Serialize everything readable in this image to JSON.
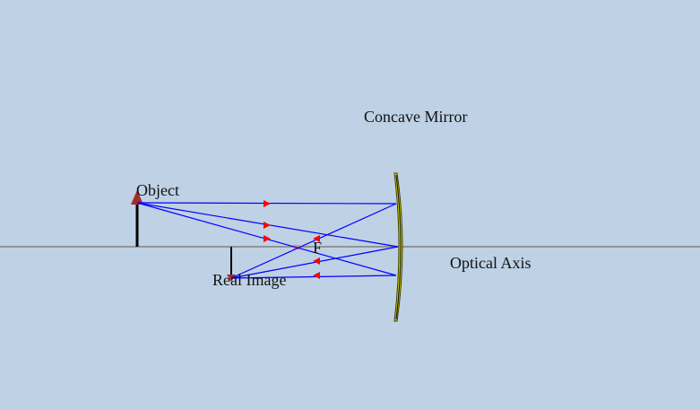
{
  "labels": {
    "mirror": "Concave Mirror",
    "object": "Object",
    "image": "Real Image",
    "focus": "F",
    "axis": "Optical Axis"
  },
  "colors": {
    "background": "#bfd1e5",
    "axis": "#808080",
    "ray": "#0000ff",
    "arrow": "#ff0000",
    "mirror_fill": "#e6e600",
    "mirror_edge": "#3a3a00",
    "object_head": "#a52a2a",
    "focus_marker": "#e88b8b"
  },
  "icons": {
    "object_head": "triangle-up",
    "image_head": "triangle-down",
    "ray_direction": "arrowhead"
  }
}
